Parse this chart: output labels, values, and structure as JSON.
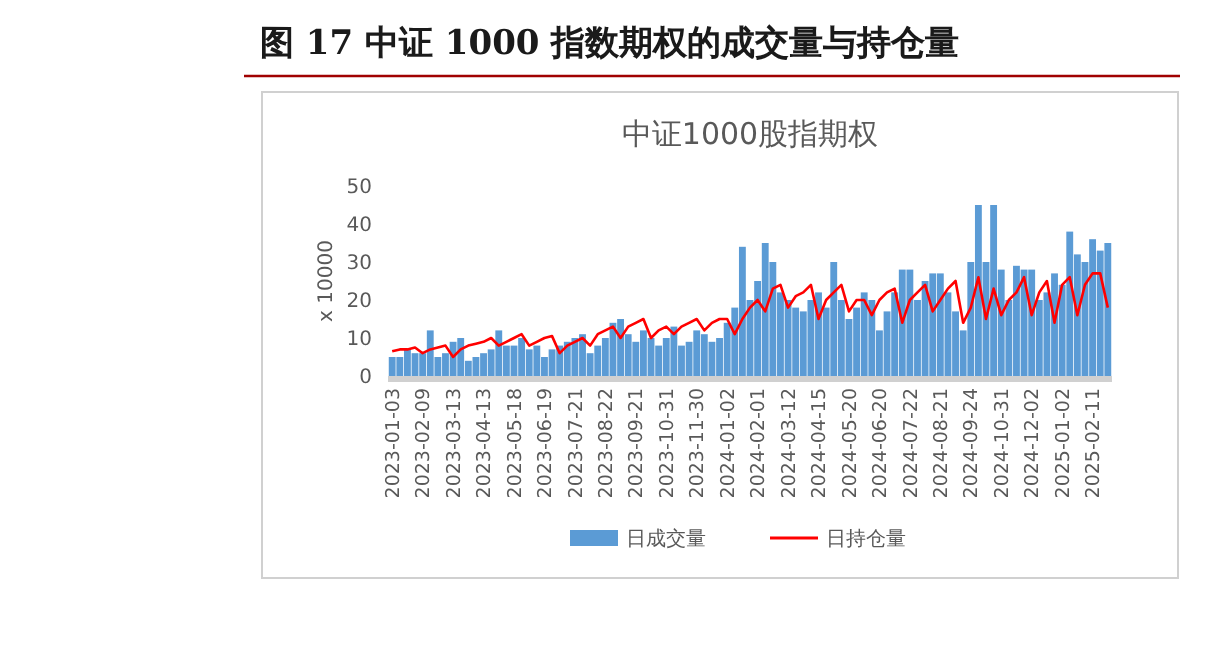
{
  "chart_data": {
    "type": "bar",
    "title": "图 17 中证 1000 指数期权的成交量与持仓量",
    "subtitle": "中证1000股指期权",
    "ylabel": "x 10000",
    "ylim": [
      0,
      50
    ],
    "yticks": [
      0,
      10,
      20,
      30,
      40,
      50
    ],
    "grid": false,
    "legend": "bottom",
    "categories": [
      "2023-01-03",
      null,
      null,
      null,
      "2023-02-09",
      null,
      null,
      null,
      "2023-03-13",
      null,
      null,
      null,
      "2023-04-13",
      null,
      null,
      null,
      "2023-05-18",
      null,
      null,
      null,
      "2023-06-19",
      null,
      null,
      null,
      "2023-07-21",
      null,
      null,
      null,
      "2023-08-22",
      null,
      null,
      null,
      "2023-09-21",
      null,
      null,
      null,
      "2023-10-31",
      null,
      null,
      null,
      "2023-11-30",
      null,
      null,
      null,
      "2024-01-02",
      null,
      null,
      null,
      "2024-02-01",
      null,
      null,
      null,
      "2024-03-12",
      null,
      null,
      null,
      "2024-04-15",
      null,
      null,
      null,
      "2024-05-20",
      null,
      null,
      null,
      "2024-06-20",
      null,
      null,
      null,
      "2024-07-22",
      null,
      null,
      null,
      "2024-08-21",
      null,
      null,
      null,
      "2024-09-24",
      null,
      null,
      null,
      "2024-10-31",
      null,
      null,
      null,
      "2024-12-02",
      null,
      null,
      null,
      "2025-01-02",
      null,
      null,
      null,
      "2025-02-11",
      null,
      null
    ],
    "series": [
      {
        "name": "日成交量",
        "color": "#5b9bd5",
        "values": [
          5,
          5,
          7,
          6,
          6,
          12,
          5,
          6,
          9,
          10,
          4,
          5,
          6,
          7,
          12,
          8,
          8,
          10,
          7,
          8,
          5,
          7,
          8,
          9,
          10,
          11,
          6,
          8,
          10,
          14,
          15,
          11,
          9,
          12,
          10,
          8,
          10,
          13,
          8,
          9,
          12,
          11,
          9,
          10,
          14,
          18,
          34,
          20,
          25,
          35,
          30,
          22,
          20,
          18,
          17,
          20,
          22,
          18,
          30,
          20,
          15,
          18,
          22,
          20,
          12,
          17,
          22,
          28,
          28,
          20,
          25,
          27,
          27,
          22,
          17,
          12,
          30,
          45,
          30,
          45,
          28,
          20,
          29,
          28,
          28,
          20,
          22,
          27,
          24,
          38,
          32,
          30,
          36,
          33,
          35
        ]
      },
      {
        "name": "日持仓量",
        "type": "line",
        "color": "#ff0000",
        "values": [
          6.5,
          7,
          7,
          7.5,
          6,
          7,
          7.5,
          8,
          5,
          7,
          8,
          8.5,
          9,
          10,
          8,
          9,
          10,
          11,
          8,
          9,
          10,
          10.5,
          6,
          8,
          9,
          10,
          8,
          11,
          12,
          13,
          10,
          13,
          14,
          15,
          10,
          12,
          13,
          11,
          13,
          14,
          15,
          12,
          14,
          15,
          15,
          11,
          15,
          18,
          20,
          17,
          23,
          24,
          18,
          21,
          22,
          24,
          15,
          20,
          22,
          24,
          17,
          20,
          20,
          16,
          20,
          22,
          23,
          14,
          20,
          22,
          24,
          17,
          20,
          23,
          25,
          14,
          18,
          26,
          15,
          23,
          16,
          20,
          22,
          26,
          16,
          22,
          25,
          14,
          24,
          26,
          16,
          24,
          27,
          27,
          18
        ]
      }
    ]
  }
}
